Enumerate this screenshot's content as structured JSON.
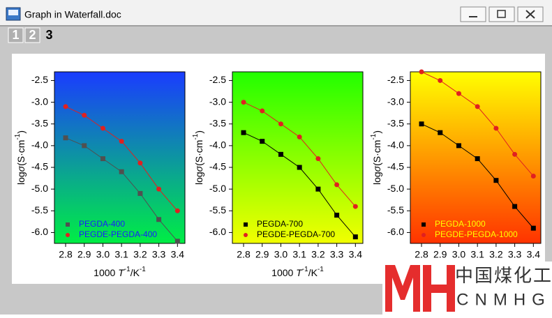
{
  "window": {
    "title": "Graph in Waterfall.doc"
  },
  "tabs": [
    "1",
    "2",
    "3"
  ],
  "watermark": {
    "logo": "MH",
    "cn": "中国煤化工",
    "en": "CNMHG"
  },
  "chart_data": [
    {
      "type": "scatter",
      "ylabel": [
        "log",
        "σ",
        "(S·cm",
        "-1",
        ")"
      ],
      "xlabel": [
        "1000 ",
        "T",
        "-1",
        "/K",
        "-1"
      ],
      "background": [
        "#1a3cff",
        "#00ee44"
      ],
      "legend_color": "#1a1aff",
      "legend": "lower left",
      "x": [
        2.8,
        2.9,
        3.0,
        3.1,
        3.2,
        3.3,
        3.4
      ],
      "series": [
        {
          "name": "PEGDA-400",
          "color": "#505050",
          "marker": "square",
          "values": [
            -3.82,
            -4.0,
            -4.3,
            -4.6,
            -5.1,
            -5.7,
            -6.2
          ]
        },
        {
          "name": "PEGDE-PEGDA-400",
          "color": "#e02020",
          "marker": "circle",
          "values": [
            -3.1,
            -3.3,
            -3.6,
            -3.9,
            -4.4,
            -5.0,
            -5.5
          ]
        }
      ],
      "xlim": [
        2.74,
        3.44
      ],
      "ylim": [
        -6.25,
        -2.3
      ],
      "xticks": [
        2.8,
        2.9,
        {
          "value": 3,
          "label": "3.0"
        },
        3.1,
        3.2,
        3.3,
        3.4
      ],
      "yticks": [
        -2.5,
        {
          "value": -3,
          "label": "-3.0"
        },
        -3.5,
        {
          "value": -4,
          "label": "-4.0"
        },
        -4.5,
        {
          "value": -5,
          "label": "-5.0"
        },
        -5.5,
        {
          "value": -6,
          "label": "-6.0"
        }
      ]
    },
    {
      "type": "scatter",
      "ylabel": [
        "log",
        "σ",
        "(S·cm",
        "-1",
        ")"
      ],
      "xlabel": [
        "1000 ",
        "T",
        "-1",
        "/K",
        "-1"
      ],
      "background": [
        "#22ff00",
        "#f2ff00"
      ],
      "legend_color": "#000000",
      "legend": "lower left",
      "x": [
        2.8,
        2.9,
        3.0,
        3.1,
        3.2,
        3.3,
        3.4
      ],
      "series": [
        {
          "name": "PEGDA-700",
          "color": "#000000",
          "marker": "square",
          "values": [
            -3.7,
            -3.9,
            -4.2,
            -4.5,
            -5.0,
            -5.6,
            -6.1
          ]
        },
        {
          "name": "PEGDE-PEGDA-700",
          "color": "#e02020",
          "marker": "circle",
          "values": [
            -3.0,
            -3.2,
            -3.5,
            -3.8,
            -4.3,
            -4.9,
            -5.4
          ]
        }
      ],
      "xlim": [
        2.74,
        3.44
      ],
      "ylim": [
        -6.25,
        -2.3
      ],
      "xticks": [
        2.8,
        2.9,
        {
          "value": 3,
          "label": "3.0"
        },
        3.1,
        3.2,
        3.3,
        3.4
      ],
      "yticks": [
        -2.5,
        {
          "value": -3,
          "label": "-3.0"
        },
        -3.5,
        {
          "value": -4,
          "label": "-4.0"
        },
        -4.5,
        {
          "value": -5,
          "label": "-5.0"
        },
        -5.5,
        {
          "value": -6,
          "label": "-6.0"
        }
      ]
    },
    {
      "type": "scatter",
      "ylabel": [
        "log",
        "σ",
        "(S·cm",
        "-1",
        ")"
      ],
      "background": [
        "#ffff00",
        "#ff3300"
      ],
      "legend_color": "#ffff00",
      "legend": "lower left",
      "x": [
        2.8,
        2.9,
        3.0,
        3.1,
        3.2,
        3.3,
        3.4
      ],
      "series": [
        {
          "name": "PEGDA-1000",
          "color": "#000000",
          "marker": "square",
          "values": [
            -3.5,
            -3.7,
            -4.0,
            -4.3,
            -4.8,
            -5.4,
            -5.9
          ]
        },
        {
          "name": "PEGDE-PEGDA-1000",
          "color": "#e02020",
          "marker": "circle",
          "values": [
            -2.3,
            -2.5,
            -2.8,
            -3.1,
            -3.6,
            -4.2,
            -4.7
          ]
        }
      ],
      "xlim": [
        2.74,
        3.44
      ],
      "ylim": [
        -6.25,
        -2.3
      ],
      "xticks": [
        2.8,
        2.9,
        {
          "value": 3,
          "label": "3.0"
        },
        3.1,
        3.2,
        3.3,
        3.4
      ],
      "yticks": [
        -2.5,
        {
          "value": -3,
          "label": "-3.0"
        },
        -3.5,
        {
          "value": -4,
          "label": "-4.0"
        },
        -4.5,
        {
          "value": -5,
          "label": "-5.0"
        },
        -5.5,
        {
          "value": -6,
          "label": "-6.0"
        }
      ]
    }
  ]
}
